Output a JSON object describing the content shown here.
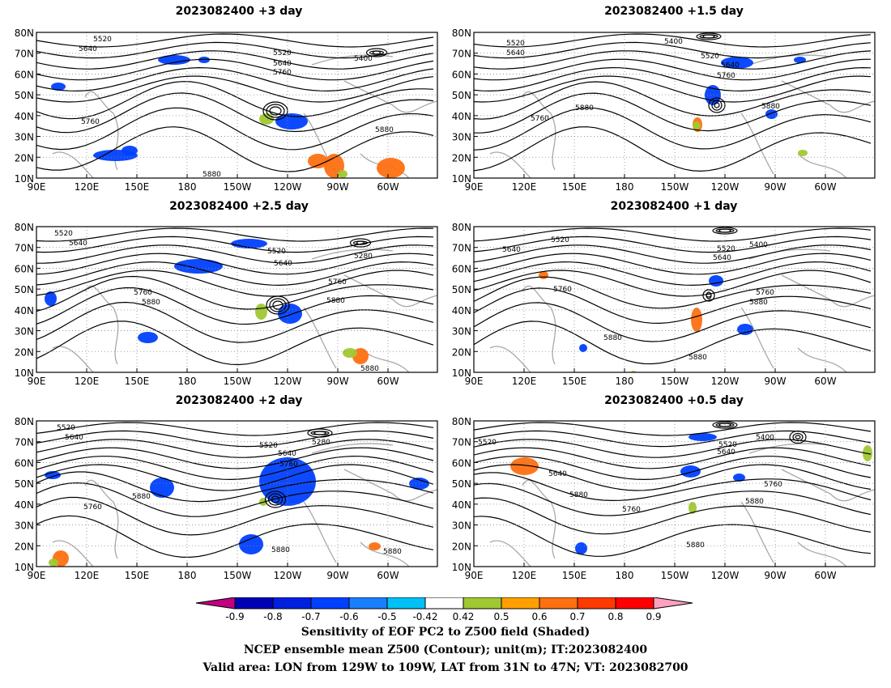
{
  "panels": [
    {
      "title": "2023082400  +3 day",
      "labels": [
        {
          "t": "5520",
          "x": 70,
          "y": 5
        },
        {
          "t": "5640",
          "x": 52,
          "y": 17
        },
        {
          "t": "5520",
          "x": 292,
          "y": 22
        },
        {
          "t": "5640",
          "x": 292,
          "y": 35
        },
        {
          "t": "5760",
          "x": 292,
          "y": 46
        },
        {
          "t": "5400",
          "x": 392,
          "y": 29
        },
        {
          "t": "5760",
          "x": 55,
          "y": 107
        },
        {
          "t": "5880",
          "x": 205,
          "y": 172
        },
        {
          "t": "5880",
          "x": 418,
          "y": 117
        }
      ],
      "blue": [
        [
          18,
          62,
          18,
          10
        ],
        [
          150,
          28,
          40,
          12
        ],
        [
          295,
          100,
          40,
          20
        ],
        [
          200,
          30,
          14,
          8
        ],
        [
          70,
          145,
          55,
          14
        ],
        [
          105,
          140,
          20,
          12
        ]
      ],
      "warm": [
        [
          335,
          150,
          25,
          18
        ],
        [
          420,
          155,
          35,
          25
        ],
        [
          355,
          150,
          25,
          30
        ]
      ],
      "green": [
        [
          275,
          100,
          18,
          14
        ],
        [
          372,
          170,
          12,
          10
        ]
      ],
      "lows": [
        [
          295,
          97,
          30,
          22
        ],
        [
          420,
          25,
          25,
          10
        ]
      ]
    },
    {
      "title": "2023082400  +1.5 day",
      "labels": [
        {
          "t": "5520",
          "x": 40,
          "y": 10
        },
        {
          "t": "5640",
          "x": 40,
          "y": 22
        },
        {
          "t": "5400",
          "x": 235,
          "y": 8
        },
        {
          "t": "5520",
          "x": 280,
          "y": 26
        },
        {
          "t": "5640",
          "x": 305,
          "y": 37
        },
        {
          "t": "5760",
          "x": 300,
          "y": 50
        },
        {
          "t": "5880",
          "x": 125,
          "y": 90
        },
        {
          "t": "5760",
          "x": 70,
          "y": 103
        },
        {
          "t": "5880",
          "x": 355,
          "y": 88
        }
      ],
      "blue": [
        [
          305,
          30,
          40,
          15
        ],
        [
          285,
          65,
          20,
          25
        ],
        [
          360,
          95,
          15,
          12
        ],
        [
          395,
          30,
          15,
          8
        ]
      ],
      "warm": [
        [
          270,
          105,
          12,
          18
        ]
      ],
      "green": [
        [
          270,
          110,
          10,
          10
        ],
        [
          400,
          145,
          12,
          8
        ]
      ],
      "lows": [
        [
          300,
          90,
          20,
          18
        ],
        [
          290,
          5,
          30,
          8
        ]
      ]
    },
    {
      "title": "2023082400  +2.5 day",
      "labels": [
        {
          "t": "5520",
          "x": 22,
          "y": 5
        },
        {
          "t": "5640",
          "x": 40,
          "y": 17
        },
        {
          "t": "5520",
          "x": 285,
          "y": 27
        },
        {
          "t": "5640",
          "x": 293,
          "y": 42
        },
        {
          "t": "5760",
          "x": 360,
          "y": 65
        },
        {
          "t": "5280",
          "x": 392,
          "y": 33
        },
        {
          "t": "5760",
          "x": 120,
          "y": 78
        },
        {
          "t": "5880",
          "x": 130,
          "y": 90
        },
        {
          "t": "5880",
          "x": 358,
          "y": 88
        },
        {
          "t": "5880",
          "x": 400,
          "y": 172
        }
      ],
      "blue": [
        [
          170,
          40,
          60,
          18
        ],
        [
          240,
          15,
          45,
          12
        ],
        [
          298,
          95,
          30,
          25
        ],
        [
          10,
          80,
          15,
          18
        ],
        [
          125,
          130,
          25,
          14
        ]
      ],
      "warm": [
        [
          390,
          150,
          20,
          20
        ]
      ],
      "green": [
        [
          270,
          95,
          15,
          20
        ],
        [
          378,
          150,
          18,
          12
        ]
      ],
      "lows": [
        [
          298,
          97,
          28,
          22
        ],
        [
          400,
          20,
          25,
          10
        ]
      ]
    },
    {
      "title": "2023082400  +1 day",
      "labels": [
        {
          "t": "5520",
          "x": 95,
          "y": 13
        },
        {
          "t": "5640",
          "x": 35,
          "y": 25
        },
        {
          "t": "5520",
          "x": 300,
          "y": 24
        },
        {
          "t": "5400",
          "x": 340,
          "y": 19
        },
        {
          "t": "5640",
          "x": 295,
          "y": 35
        },
        {
          "t": "5760",
          "x": 98,
          "y": 74
        },
        {
          "t": "5760",
          "x": 348,
          "y": 78
        },
        {
          "t": "5880",
          "x": 340,
          "y": 90
        },
        {
          "t": "5880",
          "x": 160,
          "y": 134
        },
        {
          "t": "5880",
          "x": 265,
          "y": 158
        }
      ],
      "blue": [
        [
          290,
          60,
          18,
          14
        ],
        [
          325,
          120,
          20,
          14
        ],
        [
          130,
          145,
          10,
          10
        ]
      ],
      "warm": [
        [
          268,
          100,
          14,
          30
        ],
        [
          80,
          55,
          12,
          10
        ]
      ],
      "green": [
        [
          192,
          178,
          10,
          10
        ]
      ],
      "lows": [
        [
          290,
          85,
          14,
          14
        ],
        [
          310,
          5,
          30,
          8
        ]
      ]
    },
    {
      "title": "2023082400  +2 day",
      "labels": [
        {
          "t": "5520",
          "x": 25,
          "y": 5
        },
        {
          "t": "5640",
          "x": 35,
          "y": 17
        },
        {
          "t": "5520",
          "x": 275,
          "y": 27
        },
        {
          "t": "5640",
          "x": 298,
          "y": 37
        },
        {
          "t": "5760",
          "x": 300,
          "y": 50
        },
        {
          "t": "5280",
          "x": 340,
          "y": 23
        },
        {
          "t": "5880",
          "x": 118,
          "y": 90
        },
        {
          "t": "5760",
          "x": 58,
          "y": 103
        },
        {
          "t": "5880",
          "x": 290,
          "y": 156
        },
        {
          "t": "5880",
          "x": 428,
          "y": 158
        }
      ],
      "blue": [
        [
          275,
          45,
          70,
          60
        ],
        [
          140,
          70,
          30,
          25
        ],
        [
          250,
          140,
          30,
          25
        ],
        [
          460,
          70,
          25,
          15
        ],
        [
          10,
          62,
          20,
          10
        ]
      ],
      "warm": [
        [
          20,
          160,
          20,
          20
        ],
        [
          410,
          150,
          15,
          10
        ]
      ],
      "green": [
        [
          275,
          95,
          10,
          10
        ],
        [
          15,
          170,
          12,
          10
        ]
      ],
      "lows": [
        [
          295,
          97,
          25,
          20
        ],
        [
          350,
          15,
          30,
          10
        ]
      ]
    },
    {
      "title": "2023082400  +0.5 day",
      "labels": [
        {
          "t": "5520",
          "x": 5,
          "y": 23
        },
        {
          "t": "5640",
          "x": 92,
          "y": 62
        },
        {
          "t": "5400",
          "x": 348,
          "y": 17
        },
        {
          "t": "5520",
          "x": 302,
          "y": 26
        },
        {
          "t": "5640",
          "x": 300,
          "y": 35
        },
        {
          "t": "5760",
          "x": 358,
          "y": 75
        },
        {
          "t": "5880",
          "x": 118,
          "y": 88
        },
        {
          "t": "5760",
          "x": 183,
          "y": 106
        },
        {
          "t": "5880",
          "x": 335,
          "y": 96
        },
        {
          "t": "5880",
          "x": 262,
          "y": 150
        }
      ],
      "blue": [
        [
          255,
          55,
          25,
          15
        ],
        [
          125,
          150,
          15,
          15
        ],
        [
          320,
          65,
          15,
          10
        ],
        [
          265,
          15,
          35,
          10
        ]
      ],
      "warm": [
        [
          45,
          45,
          35,
          22
        ]
      ],
      "green": [
        [
          265,
          100,
          10,
          15
        ],
        [
          480,
          30,
          12,
          20
        ]
      ],
      "lows": [
        [
          310,
          5,
          30,
          8
        ],
        [
          400,
          20,
          20,
          15
        ]
      ]
    }
  ],
  "axes": {
    "x_ticks": [
      "90E",
      "120E",
      "150E",
      "180",
      "150W",
      "120W",
      "90W",
      "60W"
    ],
    "y_ticks": [
      "80N",
      "70N",
      "60N",
      "50N",
      "40N",
      "30N",
      "20N",
      "10N"
    ]
  },
  "colorbar": {
    "colors": [
      "#c00080",
      "#0000b4",
      "#0020e0",
      "#0040ff",
      "#1880ff",
      "#00c0f8",
      "#ffffff",
      "#a0c832",
      "#ffa000",
      "#ff7010",
      "#ff3a00",
      "#ff0000",
      "#ffa0c0"
    ],
    "tick_labels": [
      "-0.9",
      "-0.8",
      "-0.7",
      "-0.6",
      "-0.5",
      "-0.42",
      "0.42",
      "0.5",
      "0.6",
      "0.7",
      "0.8",
      "0.9"
    ]
  },
  "caption": {
    "line1": "Sensitivity of EOF PC2 to Z500 field (Shaded)",
    "line2": "NCEP ensemble mean Z500 (Contour); unit(m); IT:2023082400",
    "line3": "Valid area: LON from 129W to 109W, LAT from 31N to 47N; VT: 2023082700"
  }
}
